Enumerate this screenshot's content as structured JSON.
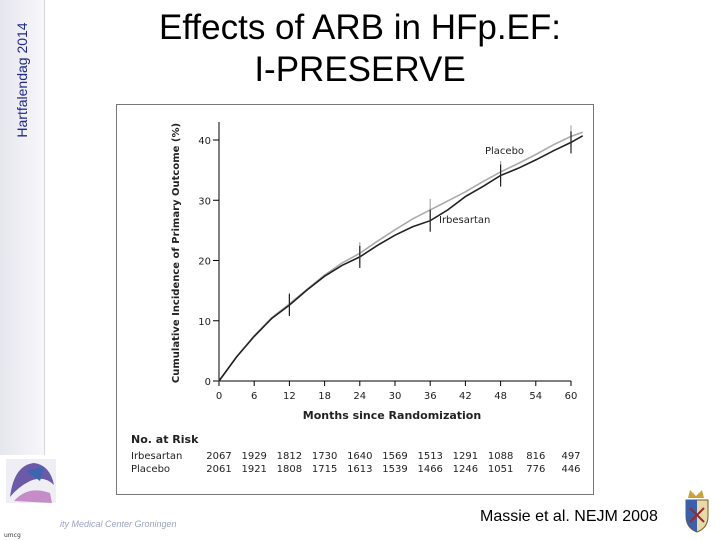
{
  "sidebar": {
    "label": "Hartfalendag 2014"
  },
  "slide": {
    "title_line1": "Effects of ARB in HFp.EF:",
    "title_line2": "I-PRESERVE",
    "citation": "Massie et al. NEJM 2008",
    "footer": "ity Medical Center Groningen",
    "logo_caption": "umcg"
  },
  "chart_data": {
    "type": "line",
    "xlabel": "Months since Randomization",
    "ylabel": "Cumulative Incidence of Primary Outcome (%)",
    "x_ticks": [
      0,
      6,
      12,
      18,
      24,
      30,
      36,
      42,
      48,
      54,
      60
    ],
    "y_ticks": [
      0,
      10,
      20,
      30,
      40
    ],
    "xlim": [
      0,
      60
    ],
    "ylim": [
      0,
      40
    ],
    "series": [
      {
        "name": "Placebo",
        "color": "#aaaaaa",
        "x": [
          0,
          3,
          6,
          9,
          12,
          15,
          18,
          21,
          24,
          27,
          30,
          33,
          36,
          39,
          42,
          45,
          48,
          51,
          54,
          57,
          60,
          62
        ],
        "y": [
          0,
          4,
          7.5,
          10.5,
          12.8,
          15.2,
          17.6,
          19.6,
          21.2,
          23.2,
          25.1,
          26.9,
          28.4,
          29.9,
          31.4,
          33.1,
          34.7,
          36.1,
          37.6,
          39.2,
          40.6,
          41.3
        ]
      },
      {
        "name": "Irbesartan",
        "color": "#222222",
        "x": [
          0,
          3,
          6,
          9,
          12,
          15,
          18,
          21,
          24,
          27,
          30,
          33,
          36,
          39,
          42,
          45,
          48,
          51,
          54,
          57,
          60,
          62
        ],
        "y": [
          0,
          4,
          7.4,
          10.4,
          12.6,
          15.1,
          17.4,
          19.2,
          20.6,
          22.5,
          24.2,
          25.6,
          26.6,
          28.4,
          30.6,
          32.3,
          34.1,
          35.3,
          36.7,
          38.2,
          39.6,
          40.7
        ]
      }
    ],
    "error_bars_x": [
      12,
      24,
      36,
      48,
      60
    ],
    "risk_table": {
      "title": "No. at Risk",
      "rows": [
        {
          "label": "Irbesartan",
          "values": [
            "2067",
            "1929",
            "1812",
            "1730",
            "1640",
            "1569",
            "1513",
            "1291",
            "1088",
            "816",
            "497"
          ]
        },
        {
          "label": "Placebo",
          "values": [
            "2061",
            "1921",
            "1808",
            "1715",
            "1613",
            "1539",
            "1466",
            "1246",
            "1051",
            "776",
            "446"
          ]
        }
      ]
    }
  }
}
